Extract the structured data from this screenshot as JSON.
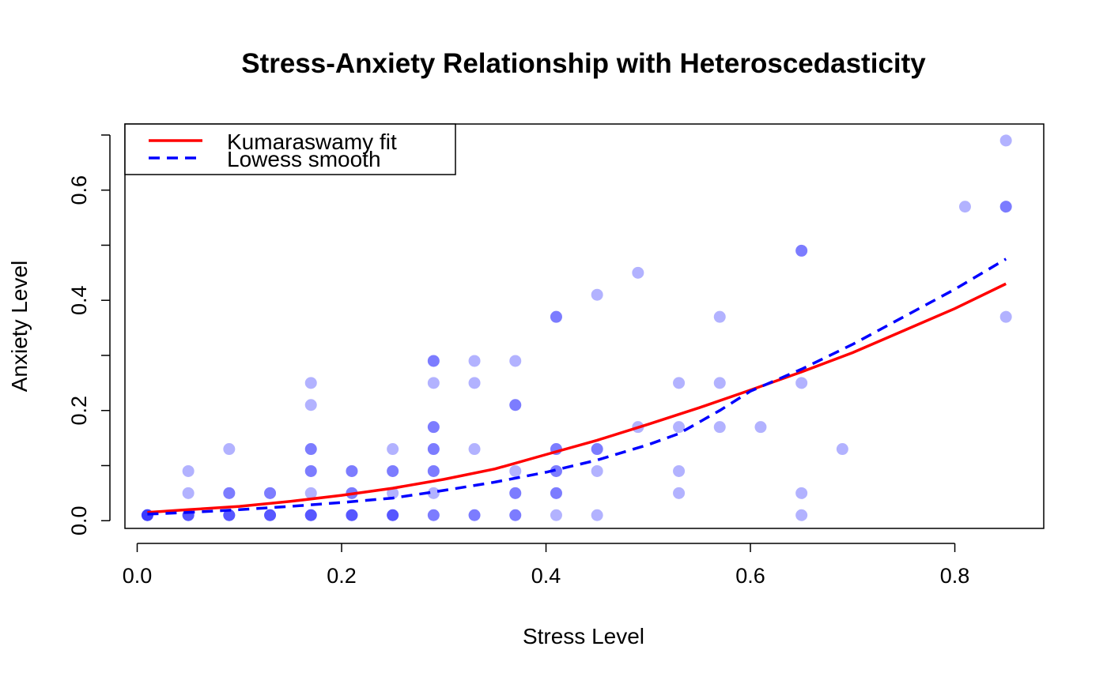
{
  "chart_data": {
    "type": "scatter",
    "title": "Stress-Anxiety Relationship with Heteroscedasticity",
    "xlabel": "Stress Level",
    "ylabel": "Anxiety Level",
    "xlim": [
      -0.012,
      0.887
    ],
    "ylim": [
      -0.014,
      0.72
    ],
    "xticks": [
      0.0,
      0.2,
      0.4,
      0.6,
      0.8
    ],
    "xtick_labels": [
      "0.0",
      "0.2",
      "0.4",
      "0.6",
      "0.8"
    ],
    "yticks": [
      0.0,
      0.1,
      0.2,
      0.3,
      0.4,
      0.5,
      0.6,
      0.7
    ],
    "ytick_labels": [
      "0.0",
      "",
      "0.2",
      "",
      "0.4",
      "",
      "0.6",
      ""
    ],
    "grid": false,
    "legend_position": "top-left",
    "point_color": "#0000ff",
    "points": [
      [
        0.01,
        0.01
      ],
      [
        0.01,
        0.01
      ],
      [
        0.01,
        0.01
      ],
      [
        0.01,
        0.01
      ],
      [
        0.05,
        0.01
      ],
      [
        0.05,
        0.01
      ],
      [
        0.05,
        0.01
      ],
      [
        0.05,
        0.05
      ],
      [
        0.05,
        0.09
      ],
      [
        0.09,
        0.01
      ],
      [
        0.09,
        0.01
      ],
      [
        0.09,
        0.01
      ],
      [
        0.09,
        0.05
      ],
      [
        0.09,
        0.05
      ],
      [
        0.09,
        0.13
      ],
      [
        0.13,
        0.01
      ],
      [
        0.13,
        0.01
      ],
      [
        0.13,
        0.01
      ],
      [
        0.13,
        0.05
      ],
      [
        0.13,
        0.05
      ],
      [
        0.17,
        0.01
      ],
      [
        0.17,
        0.01
      ],
      [
        0.17,
        0.01
      ],
      [
        0.17,
        0.05
      ],
      [
        0.17,
        0.09
      ],
      [
        0.17,
        0.09
      ],
      [
        0.17,
        0.13
      ],
      [
        0.17,
        0.13
      ],
      [
        0.17,
        0.21
      ],
      [
        0.17,
        0.25
      ],
      [
        0.21,
        0.01
      ],
      [
        0.21,
        0.01
      ],
      [
        0.21,
        0.01
      ],
      [
        0.21,
        0.05
      ],
      [
        0.21,
        0.05
      ],
      [
        0.21,
        0.09
      ],
      [
        0.21,
        0.09
      ],
      [
        0.25,
        0.01
      ],
      [
        0.25,
        0.01
      ],
      [
        0.25,
        0.01
      ],
      [
        0.25,
        0.05
      ],
      [
        0.25,
        0.09
      ],
      [
        0.25,
        0.09
      ],
      [
        0.25,
        0.13
      ],
      [
        0.29,
        0.01
      ],
      [
        0.29,
        0.01
      ],
      [
        0.29,
        0.05
      ],
      [
        0.29,
        0.09
      ],
      [
        0.29,
        0.09
      ],
      [
        0.29,
        0.13
      ],
      [
        0.29,
        0.13
      ],
      [
        0.29,
        0.17
      ],
      [
        0.29,
        0.17
      ],
      [
        0.29,
        0.25
      ],
      [
        0.29,
        0.29
      ],
      [
        0.29,
        0.29
      ],
      [
        0.33,
        0.01
      ],
      [
        0.33,
        0.01
      ],
      [
        0.33,
        0.13
      ],
      [
        0.33,
        0.25
      ],
      [
        0.33,
        0.29
      ],
      [
        0.37,
        0.01
      ],
      [
        0.37,
        0.01
      ],
      [
        0.37,
        0.05
      ],
      [
        0.37,
        0.05
      ],
      [
        0.37,
        0.09
      ],
      [
        0.37,
        0.21
      ],
      [
        0.37,
        0.21
      ],
      [
        0.37,
        0.29
      ],
      [
        0.41,
        0.01
      ],
      [
        0.41,
        0.05
      ],
      [
        0.41,
        0.05
      ],
      [
        0.41,
        0.09
      ],
      [
        0.41,
        0.09
      ],
      [
        0.41,
        0.13
      ],
      [
        0.41,
        0.13
      ],
      [
        0.41,
        0.37
      ],
      [
        0.41,
        0.37
      ],
      [
        0.45,
        0.01
      ],
      [
        0.45,
        0.09
      ],
      [
        0.45,
        0.13
      ],
      [
        0.45,
        0.13
      ],
      [
        0.45,
        0.41
      ],
      [
        0.49,
        0.17
      ],
      [
        0.49,
        0.45
      ],
      [
        0.53,
        0.05
      ],
      [
        0.53,
        0.09
      ],
      [
        0.53,
        0.17
      ],
      [
        0.53,
        0.25
      ],
      [
        0.57,
        0.17
      ],
      [
        0.57,
        0.25
      ],
      [
        0.57,
        0.37
      ],
      [
        0.61,
        0.17
      ],
      [
        0.65,
        0.01
      ],
      [
        0.65,
        0.05
      ],
      [
        0.65,
        0.25
      ],
      [
        0.65,
        0.49
      ],
      [
        0.65,
        0.49
      ],
      [
        0.69,
        0.13
      ],
      [
        0.81,
        0.57
      ],
      [
        0.85,
        0.37
      ],
      [
        0.85,
        0.57
      ],
      [
        0.85,
        0.57
      ],
      [
        0.85,
        0.69
      ]
    ],
    "series": [
      {
        "name": "Kumaraswamy fit",
        "color": "#ff0000",
        "style": "solid",
        "x": [
          0.01,
          0.05,
          0.1,
          0.15,
          0.2,
          0.25,
          0.3,
          0.35,
          0.4,
          0.45,
          0.5,
          0.55,
          0.6,
          0.65,
          0.7,
          0.75,
          0.8,
          0.85
        ],
        "y": [
          0.015,
          0.02,
          0.026,
          0.035,
          0.046,
          0.059,
          0.075,
          0.094,
          0.12,
          0.146,
          0.175,
          0.205,
          0.237,
          0.27,
          0.305,
          0.345,
          0.385,
          0.43
        ]
      },
      {
        "name": "Lowess smooth",
        "color": "#0000ff",
        "style": "dashed",
        "x": [
          0.01,
          0.05,
          0.1,
          0.15,
          0.2,
          0.25,
          0.3,
          0.35,
          0.4,
          0.45,
          0.5,
          0.53,
          0.57,
          0.6,
          0.65,
          0.7,
          0.75,
          0.8,
          0.85
        ],
        "y": [
          0.012,
          0.015,
          0.02,
          0.026,
          0.033,
          0.041,
          0.055,
          0.07,
          0.088,
          0.11,
          0.138,
          0.158,
          0.2,
          0.235,
          0.275,
          0.32,
          0.37,
          0.42,
          0.475
        ]
      }
    ]
  }
}
